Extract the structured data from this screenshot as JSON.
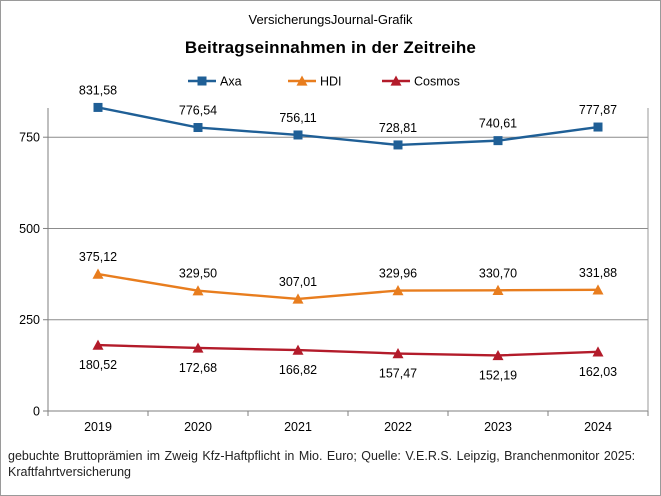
{
  "header": {
    "supertitle": "VersicherungsJournal-Grafik",
    "title": "Beitragseinnahmen  in der Zeitreihe"
  },
  "footnote": "gebuchte Bruttoprämien im Zweig Kfz-Haftpflicht  in Mio. Euro; Quelle: V.E.R.S. Leipzig, Branchenmonitor 2025: Kraftfahrtversicherung",
  "chart_data": {
    "type": "line",
    "title": "Beitragseinnahmen  in der Zeitreihe",
    "xlabel": "",
    "ylabel": "",
    "categories": [
      "2019",
      "2020",
      "2021",
      "2022",
      "2023",
      "2024"
    ],
    "ylim": [
      0,
      830
    ],
    "yticks": [
      0,
      250,
      500,
      750
    ],
    "grid": "horizontal",
    "legend": "top",
    "series": [
      {
        "name": "Axa",
        "color": "#1f5f96",
        "marker": "square",
        "values": [
          831.58,
          776.54,
          756.11,
          728.81,
          740.61,
          777.87
        ],
        "labels": [
          "831,58",
          "776,54",
          "756,11",
          "728,81",
          "740,61",
          "777,87"
        ],
        "label_position": "above"
      },
      {
        "name": "HDI",
        "color": "#e87d1e",
        "marker": "triangle",
        "values": [
          375.12,
          329.5,
          307.01,
          329.96,
          330.7,
          331.88
        ],
        "labels": [
          "375,12",
          "329,50",
          "307,01",
          "329,96",
          "330,70",
          "331,88"
        ],
        "label_position": "above"
      },
      {
        "name": "Cosmos",
        "color": "#b31b2a",
        "marker": "triangle",
        "values": [
          180.52,
          172.68,
          166.82,
          157.47,
          152.19,
          162.03
        ],
        "labels": [
          "180,52",
          "172,68",
          "166,82",
          "157,47",
          "152,19",
          "162,03"
        ],
        "label_position": "below"
      }
    ]
  }
}
